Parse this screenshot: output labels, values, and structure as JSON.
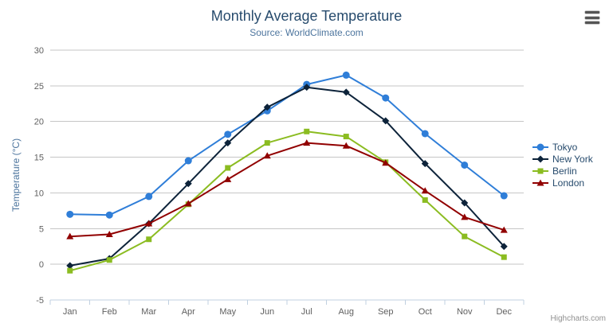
{
  "header": {
    "title": "Monthly Average Temperature",
    "subtitle": "Source: WorldClimate.com"
  },
  "credits": "Highcharts.com",
  "icons": {
    "context_menu": "hamburger-icon"
  },
  "colors": {
    "title": "#274b6d",
    "subtitle": "#4d759e",
    "axis_label": "#606060",
    "axis_title": "#4d759e",
    "legend_text": "#274b6d",
    "grid": "#c6c6c6",
    "axis_line": "#c0d0e0",
    "credits": "#909090",
    "background": "#ffffff"
  },
  "chart_data": {
    "type": "line",
    "title": "Monthly Average Temperature",
    "subtitle": "Source: WorldClimate.com",
    "xlabel": "",
    "ylabel": "Temperature (°C)",
    "ylim": [
      -5,
      30
    ],
    "yticks": [
      -5,
      0,
      5,
      10,
      15,
      20,
      25,
      30
    ],
    "grid": true,
    "legend_position": "right",
    "categories": [
      "Jan",
      "Feb",
      "Mar",
      "Apr",
      "May",
      "Jun",
      "Jul",
      "Aug",
      "Sep",
      "Oct",
      "Nov",
      "Dec"
    ],
    "series": [
      {
        "name": "Tokyo",
        "color": "#2f7ed8",
        "marker": "circle",
        "values": [
          7.0,
          6.9,
          9.5,
          14.5,
          18.2,
          21.5,
          25.2,
          26.5,
          23.3,
          18.3,
          13.9,
          9.6
        ]
      },
      {
        "name": "New York",
        "color": "#0d233a",
        "marker": "diamond",
        "values": [
          -0.2,
          0.8,
          5.7,
          11.3,
          17.0,
          22.0,
          24.8,
          24.1,
          20.1,
          14.1,
          8.6,
          2.5
        ]
      },
      {
        "name": "Berlin",
        "color": "#8bbc21",
        "marker": "square",
        "values": [
          -0.9,
          0.6,
          3.5,
          8.4,
          13.5,
          17.0,
          18.6,
          17.9,
          14.3,
          9.0,
          3.9,
          1.0
        ]
      },
      {
        "name": "London",
        "color": "#910000",
        "marker": "triangle",
        "values": [
          3.9,
          4.2,
          5.7,
          8.5,
          11.9,
          15.2,
          17.0,
          16.6,
          14.2,
          10.3,
          6.6,
          4.8
        ]
      }
    ]
  }
}
